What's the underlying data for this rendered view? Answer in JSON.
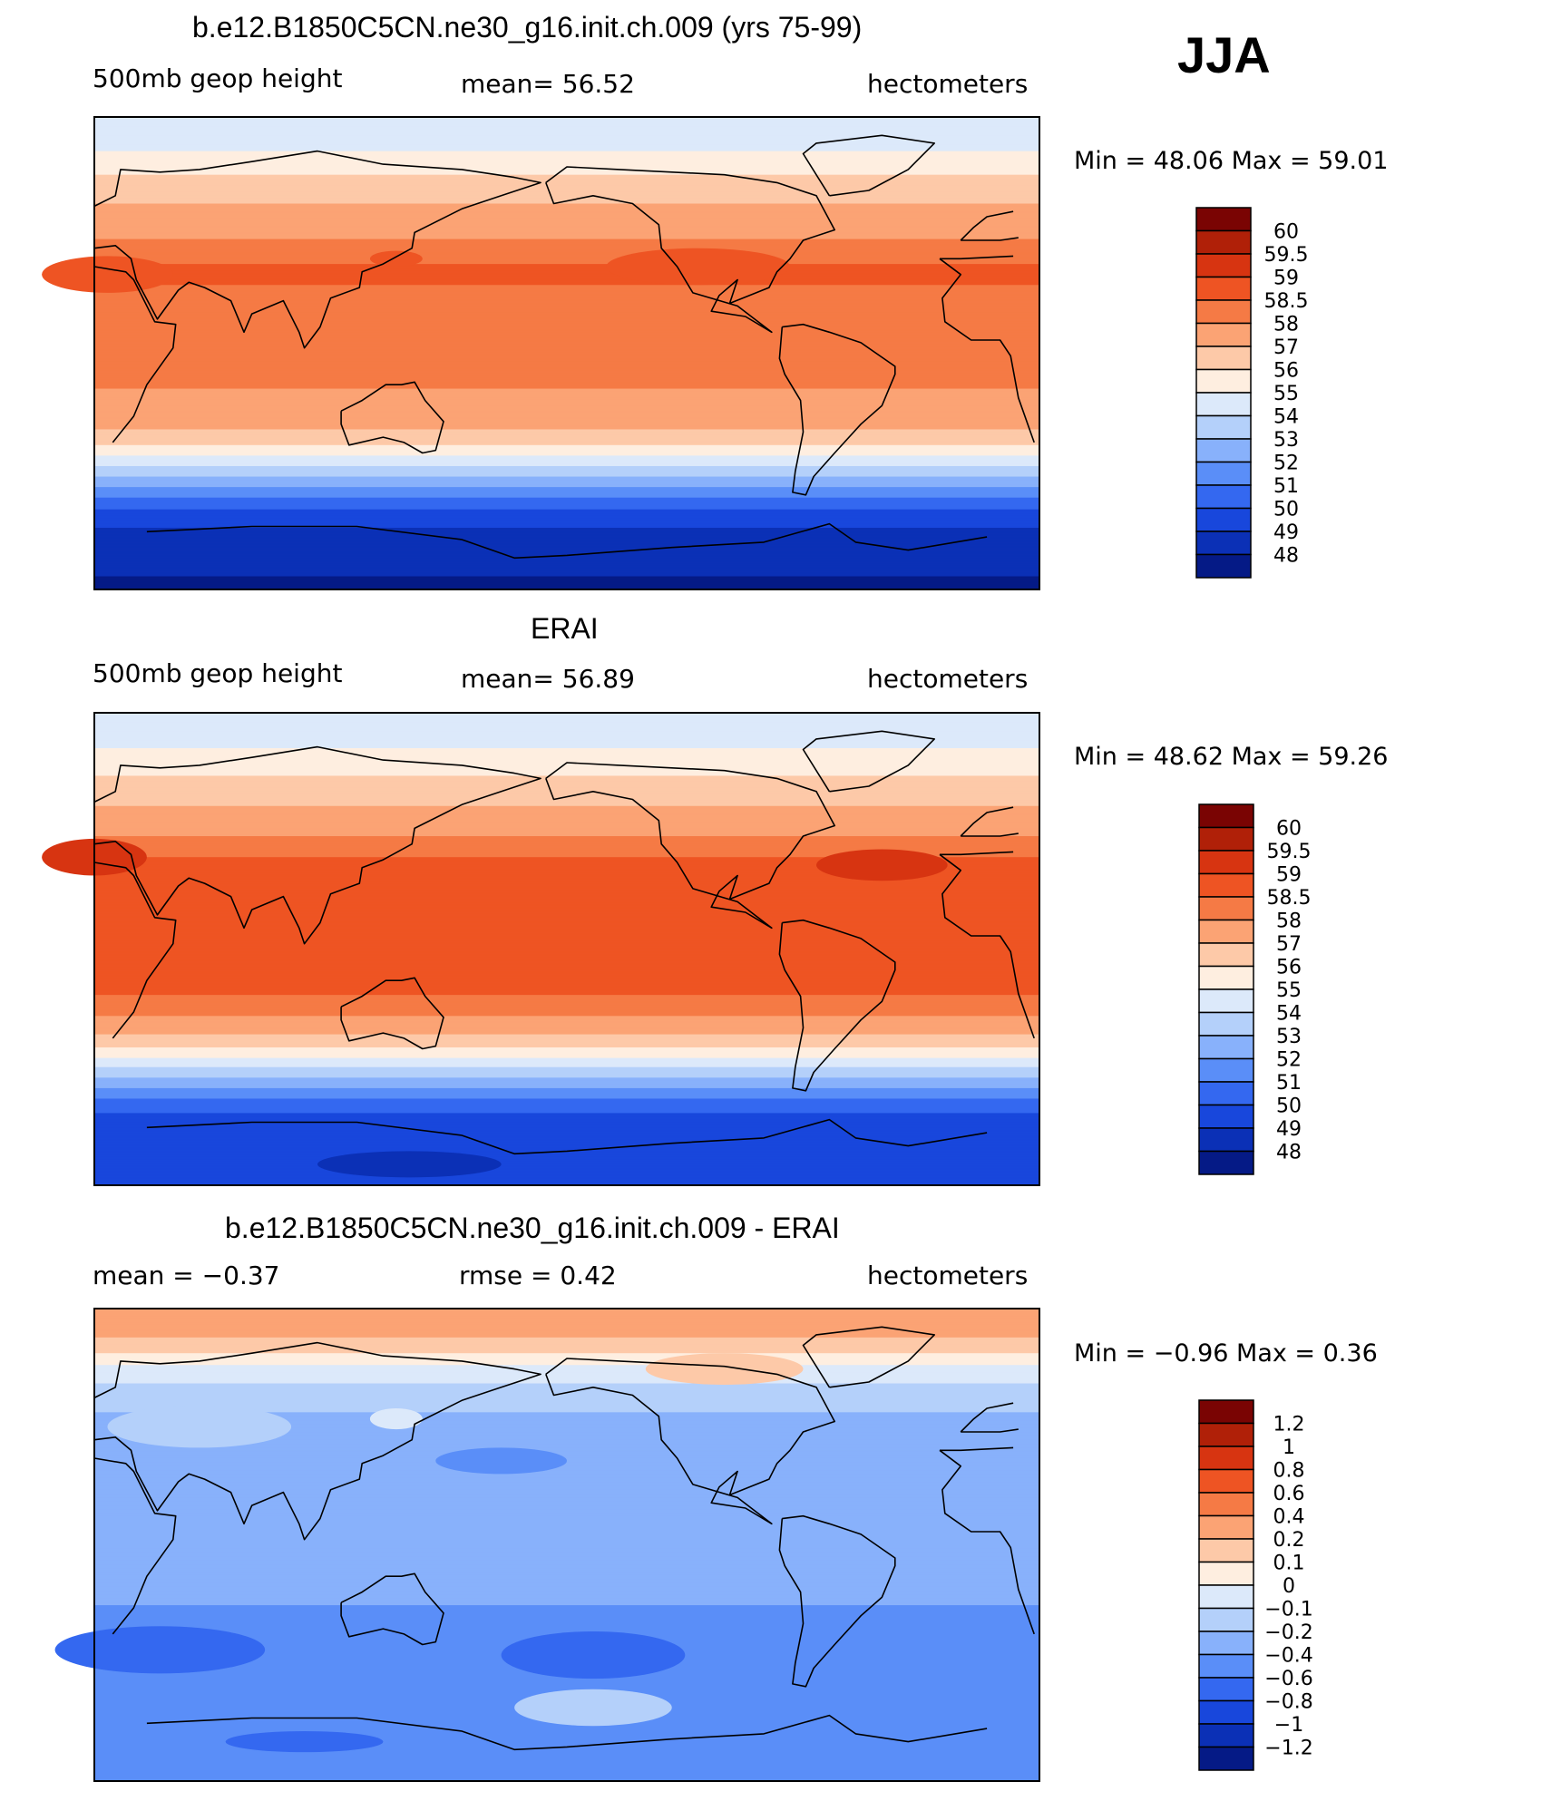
{
  "season": "JJA",
  "chart_data": [
    {
      "type": "heatmap",
      "title": "b.e12.B1850C5CN.ne30_g16.init.ch.009 (yrs 75-99)",
      "left_label": "500mb geop height",
      "center_label": "mean=   56.52",
      "right_label": "hectometers",
      "stats": "Min =    48.06  Max =    59.01",
      "min": 48.06,
      "max": 59.01,
      "mean": 56.52,
      "colorbar": {
        "labels": [
          "60",
          "59.5",
          "59",
          "58.5",
          "58",
          "57",
          "56",
          "55",
          "54",
          "53",
          "52",
          "51",
          "50",
          "49",
          "48"
        ],
        "colors": [
          "#7a0403",
          "#b02008",
          "#d73411",
          "#ee5423",
          "#f57a45",
          "#fba374",
          "#fdc9a8",
          "#feeee0",
          "#dce9fa",
          "#b4d0fa",
          "#88b1fb",
          "#5a8ef8",
          "#3468f0",
          "#1847dc",
          "#0b30b6",
          "#051a86"
        ]
      },
      "bands": [
        {
          "lat": 90,
          "v": 54.5
        },
        {
          "lat": 80,
          "v": 54.6
        },
        {
          "lat": 72,
          "v": 55.6
        },
        {
          "lat": 62,
          "v": 56.6
        },
        {
          "lat": 52,
          "v": 57.4
        },
        {
          "lat": 42,
          "v": 58.1
        },
        {
          "lat": 32,
          "v": 58.6
        },
        {
          "lat": 20,
          "v": 58.4
        },
        {
          "lat": 5,
          "v": 58.2
        },
        {
          "lat": -10,
          "v": 58.1
        },
        {
          "lat": -20,
          "v": 57.8
        },
        {
          "lat": -28,
          "v": 57.1
        },
        {
          "lat": -34,
          "v": 56.3
        },
        {
          "lat": -38,
          "v": 55.3
        },
        {
          "lat": -42,
          "v": 54.2
        },
        {
          "lat": -46,
          "v": 53.2
        },
        {
          "lat": -50,
          "v": 52.2
        },
        {
          "lat": -54,
          "v": 51.2
        },
        {
          "lat": -58,
          "v": 50.3
        },
        {
          "lat": -63,
          "v": 49.4
        },
        {
          "lat": -70,
          "v": 48.6
        },
        {
          "lat": -90,
          "v": 47.8
        }
      ],
      "blobs": [
        {
          "lon": 135,
          "lat": 36,
          "rx": 10,
          "ry": 3,
          "v": 58.7
        },
        {
          "lon": 250,
          "lat": 33,
          "rx": 35,
          "ry": 7,
          "v": 58.8
        },
        {
          "lon": 25,
          "lat": 30,
          "rx": 25,
          "ry": 7,
          "v": 58.8
        }
      ]
    },
    {
      "type": "heatmap",
      "title": "ERAI",
      "left_label": "500mb geop height",
      "center_label": "mean=   56.89",
      "right_label": "hectometers",
      "stats": "Min =    48.62  Max =    59.26",
      "min": 48.62,
      "max": 59.26,
      "mean": 56.89,
      "colorbar": {
        "labels": [
          "60",
          "59.5",
          "59",
          "58.5",
          "58",
          "57",
          "56",
          "55",
          "54",
          "53",
          "52",
          "51",
          "50",
          "49",
          "48"
        ],
        "colors": [
          "#7a0403",
          "#b02008",
          "#d73411",
          "#ee5423",
          "#f57a45",
          "#fba374",
          "#fdc9a8",
          "#feeee0",
          "#dce9fa",
          "#b4d0fa",
          "#88b1fb",
          "#5a8ef8",
          "#3468f0",
          "#1847dc",
          "#0b30b6",
          "#051a86"
        ]
      },
      "bands": [
        {
          "lat": 90,
          "v": 54.6
        },
        {
          "lat": 80,
          "v": 54.7
        },
        {
          "lat": 70,
          "v": 55.6
        },
        {
          "lat": 60,
          "v": 56.6
        },
        {
          "lat": 50,
          "v": 57.3
        },
        {
          "lat": 40,
          "v": 58.3
        },
        {
          "lat": 30,
          "v": 58.7
        },
        {
          "lat": 15,
          "v": 58.7
        },
        {
          "lat": 0,
          "v": 58.6
        },
        {
          "lat": -15,
          "v": 58.6
        },
        {
          "lat": -24,
          "v": 58.2
        },
        {
          "lat": -30,
          "v": 57.4
        },
        {
          "lat": -36,
          "v": 56.4
        },
        {
          "lat": -40,
          "v": 55.4
        },
        {
          "lat": -44,
          "v": 54.3
        },
        {
          "lat": -48,
          "v": 53.3
        },
        {
          "lat": -52,
          "v": 52.3
        },
        {
          "lat": -56,
          "v": 51.2
        },
        {
          "lat": -61,
          "v": 50.2
        },
        {
          "lat": -67,
          "v": 49.4
        },
        {
          "lat": -90,
          "v": 49.1
        }
      ],
      "blobs": [
        {
          "lon": 20,
          "lat": 35,
          "rx": 20,
          "ry": 7,
          "v": 59.2
        },
        {
          "lon": 320,
          "lat": 32,
          "rx": 25,
          "ry": 6,
          "v": 59.2
        },
        {
          "lon": 140,
          "lat": -82,
          "rx": 35,
          "ry": 5,
          "v": 48.8
        }
      ]
    },
    {
      "type": "heatmap",
      "title": "b.e12.B1850C5CN.ne30_g16.init.ch.009 - ERAI",
      "left_label": "mean =    −0.37",
      "center_label": "rmse =     0.42",
      "right_label": "hectometers",
      "stats": "Min =    −0.96  Max =     0.36",
      "min": -0.96,
      "max": 0.36,
      "mean": -0.37,
      "rmse": 0.42,
      "colorbar": {
        "labels": [
          "1.2",
          "1",
          "0.8",
          "0.6",
          "0.4",
          "0.2",
          "0.1",
          "0",
          "−0.1",
          "−0.2",
          "−0.4",
          "−0.6",
          "−0.8",
          "−1",
          "−1.2"
        ],
        "colors": [
          "#7a0403",
          "#b02008",
          "#d73411",
          "#ee5423",
          "#f57a45",
          "#fba374",
          "#fdc9a8",
          "#feeee0",
          "#dce9fa",
          "#b4d0fa",
          "#88b1fb",
          "#5a8ef8",
          "#3468f0",
          "#1847dc",
          "#0b30b6",
          "#051a86"
        ]
      },
      "bands": [
        {
          "lat": 90,
          "v": 0.25
        },
        {
          "lat": 80,
          "v": 0.22
        },
        {
          "lat": 74,
          "v": 0.12
        },
        {
          "lat": 66,
          "v": -0.05
        },
        {
          "lat": 56,
          "v": -0.16
        },
        {
          "lat": 45,
          "v": -0.24
        },
        {
          "lat": 20,
          "v": -0.3
        },
        {
          "lat": -5,
          "v": -0.33
        },
        {
          "lat": -20,
          "v": -0.38
        },
        {
          "lat": -30,
          "v": -0.45
        },
        {
          "lat": -42,
          "v": -0.5
        },
        {
          "lat": -55,
          "v": -0.46
        },
        {
          "lat": -68,
          "v": -0.43
        },
        {
          "lat": -80,
          "v": -0.48
        },
        {
          "lat": -90,
          "v": -0.5
        }
      ],
      "blobs": [
        {
          "lon": 60,
          "lat": 45,
          "rx": 35,
          "ry": 8,
          "v": -0.12
        },
        {
          "lon": 135,
          "lat": 48,
          "rx": 10,
          "ry": 4,
          "v": -0.08
        },
        {
          "lon": 260,
          "lat": 67,
          "rx": 30,
          "ry": 6,
          "v": 0.12
        },
        {
          "lon": 175,
          "lat": 32,
          "rx": 25,
          "ry": 5,
          "v": -0.45
        },
        {
          "lon": 45,
          "lat": -40,
          "rx": 40,
          "ry": 9,
          "v": -0.62
        },
        {
          "lon": 210,
          "lat": -42,
          "rx": 35,
          "ry": 9,
          "v": -0.68
        },
        {
          "lon": 210,
          "lat": -62,
          "rx": 30,
          "ry": 7,
          "v": -0.15
        },
        {
          "lon": 100,
          "lat": -75,
          "rx": 30,
          "ry": 4,
          "v": -0.62
        }
      ]
    }
  ]
}
